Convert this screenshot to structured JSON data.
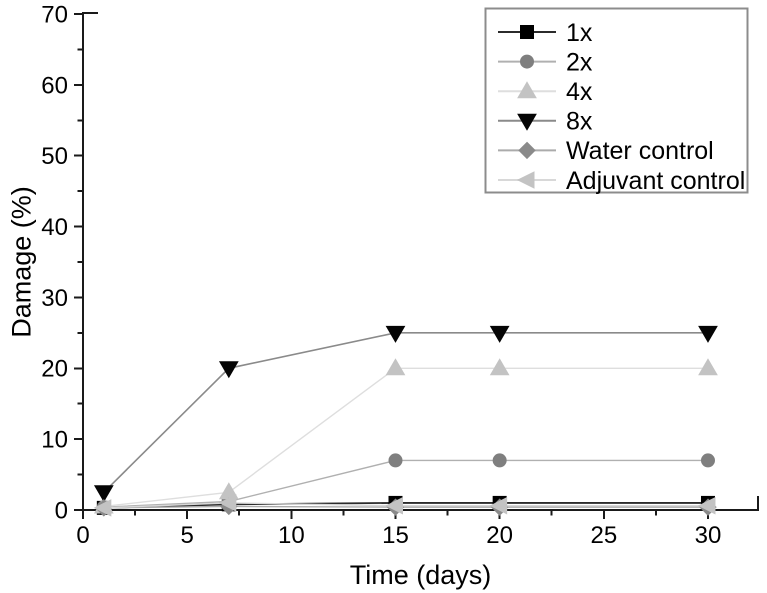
{
  "figure": {
    "background": "#ffffff",
    "text_color": "#000000",
    "axis_color": "#1a1a1a"
  },
  "chart_data": {
    "type": "line",
    "title": "",
    "xlabel": "Time (days)",
    "ylabel": "Damage (%)",
    "xlim": [
      0,
      32.4
    ],
    "ylim": [
      0,
      70.3
    ],
    "grid": false,
    "legend_position": "top-right",
    "legend_border_color": "#8c8c8c",
    "x_major_ticks": [
      0,
      5,
      10,
      15,
      20,
      25,
      30
    ],
    "x_minor_ticks": [
      2.5,
      7.5,
      12.5,
      17.5,
      22.5,
      27.5
    ],
    "y_major_ticks": [
      0,
      10,
      20,
      30,
      40,
      50,
      60,
      70
    ],
    "y_minor_ticks": [
      5,
      15,
      25,
      35,
      45,
      55,
      65
    ],
    "x": [
      1,
      7,
      15,
      20,
      30
    ],
    "series": [
      {
        "name": "1x",
        "marker": "square",
        "marker_color": "#000000",
        "line_color": "#2b2b2b",
        "line_width": 1.8,
        "values": [
          0.3,
          0.8,
          1,
          1,
          1
        ]
      },
      {
        "name": "2x",
        "marker": "circle",
        "marker_color": "#7f7f7f",
        "line_color": "#b0b0b0",
        "line_width": 1.4,
        "values": [
          0.4,
          1.2,
          7,
          7,
          7
        ]
      },
      {
        "name": "4x",
        "marker": "triangle-up",
        "marker_color": "#c3c3c3",
        "line_color": "#dedede",
        "line_width": 1.4,
        "values": [
          0.5,
          2.5,
          20,
          20,
          20
        ]
      },
      {
        "name": "8x",
        "marker": "triangle-down",
        "marker_color": "#050505",
        "line_color": "#8a8a8a",
        "line_width": 1.6,
        "values": [
          2.5,
          20,
          25,
          25,
          25
        ]
      },
      {
        "name": "Water control",
        "marker": "diamond",
        "marker_color": "#8a8a8a",
        "line_color": "#ababab",
        "line_width": 1.4,
        "values": [
          0.3,
          0.5,
          0.4,
          0.4,
          0.4
        ]
      },
      {
        "name": "Adjuvant control",
        "marker": "triangle-left",
        "marker_color": "#c3c3c3",
        "line_color": "#d8d8d8",
        "line_width": 1.4,
        "values": [
          0.3,
          1.0,
          0.6,
          0.6,
          0.6
        ]
      }
    ]
  }
}
